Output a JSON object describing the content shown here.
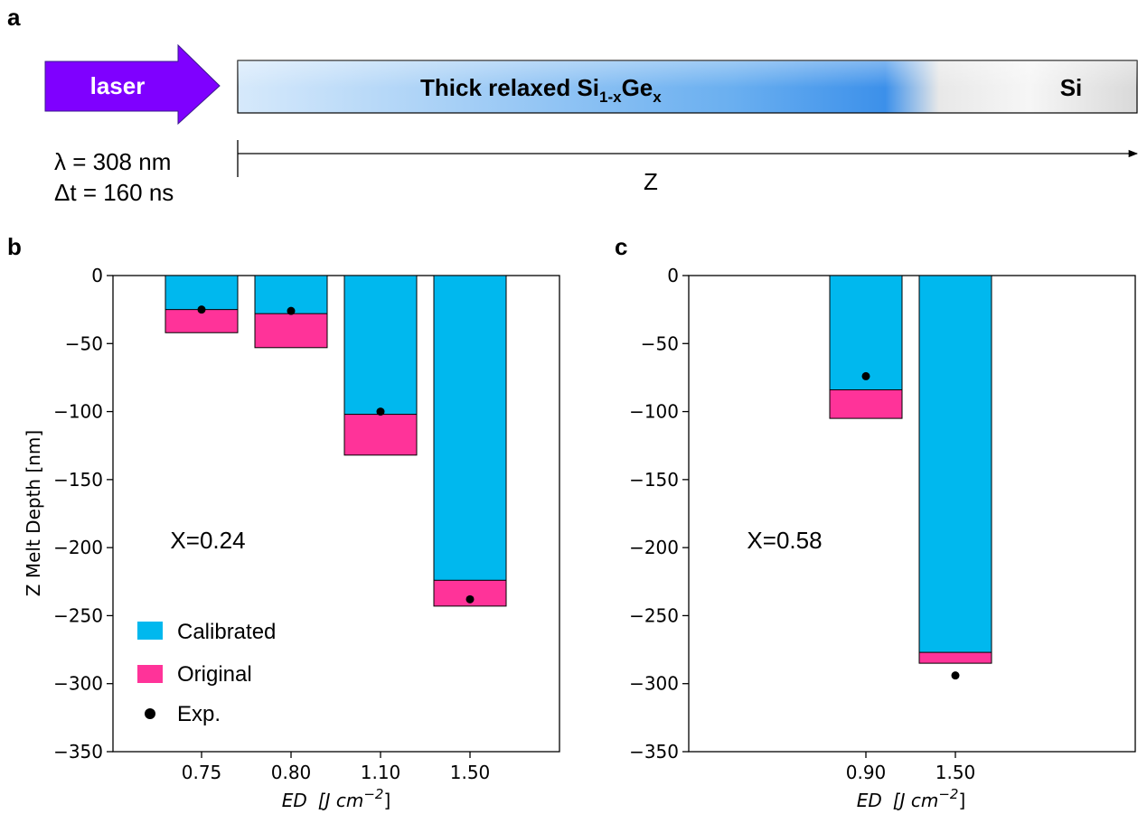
{
  "colors": {
    "calibrated": "#00b8ee",
    "original": "#ff3399",
    "exp": "#000000",
    "laser_arrow": "#7f00ff"
  },
  "panel_a": {
    "letter": "a",
    "laser_label": "laser",
    "layer_main": "Thick relaxed Si",
    "layer_main_sub": "1-x",
    "layer_main_ge": "Ge",
    "layer_main_ge_sub": "x",
    "layer_si": "Si",
    "wavelength": "λ = 308 nm",
    "pulse": "Δt = 160 ns",
    "axis_label": "Z"
  },
  "chart_data": [
    {
      "panel_letter": "b",
      "type": "bar",
      "categories": [
        "0.75",
        "0.80",
        "1.10",
        "1.50"
      ],
      "series": [
        {
          "name": "Calibrated",
          "values": [
            -25,
            -28,
            -102,
            -224
          ]
        },
        {
          "name": "Original",
          "values": [
            -42,
            -53,
            -132,
            -243
          ]
        },
        {
          "name": "Exp.",
          "marker": "point",
          "values": [
            -25,
            -26,
            -100,
            -238
          ]
        }
      ],
      "ylabel": "Z Melt Depth [nm]",
      "xlabel_main": "ED",
      "xlabel_unit": "[J   cm",
      "xlabel_exp": "−2",
      "xlabel_close": "]",
      "ylim": [
        -350,
        0
      ],
      "yticks": [
        0,
        -50,
        -100,
        -150,
        -200,
        -250,
        -300,
        -350
      ],
      "ytick_labels": [
        "0",
        "−50",
        "−100",
        "−150",
        "−200",
        "−250",
        "−300",
        "−350"
      ],
      "annotation": "X=0.24",
      "legend": [
        "Calibrated",
        "Original",
        "Exp."
      ],
      "legend_position": "lower-left",
      "grid": false
    },
    {
      "panel_letter": "c",
      "type": "bar",
      "categories": [
        "0.90",
        "1.50"
      ],
      "series": [
        {
          "name": "Calibrated",
          "values": [
            -84,
            -277
          ]
        },
        {
          "name": "Original",
          "values": [
            -105,
            -285
          ]
        },
        {
          "name": "Exp.",
          "marker": "point",
          "values": [
            -74,
            -294
          ]
        }
      ],
      "xlabel_main": "ED",
      "xlabel_unit": "[J   cm",
      "xlabel_exp": "−2",
      "xlabel_close": "]",
      "ylim": [
        -350,
        0
      ],
      "yticks": [
        0,
        -50,
        -100,
        -150,
        -200,
        -250,
        -300,
        -350
      ],
      "ytick_labels": [
        "0",
        "−50",
        "−100",
        "−150",
        "−200",
        "−250",
        "−300",
        "−350"
      ],
      "annotation": "X=0.58",
      "grid": false
    }
  ]
}
